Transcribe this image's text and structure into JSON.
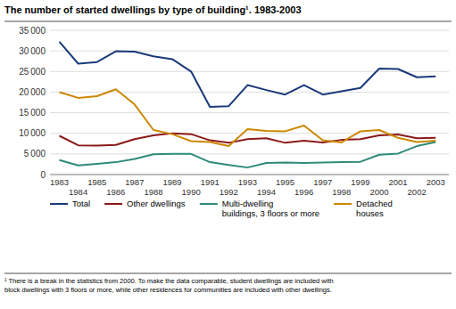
{
  "chart_data": {
    "type": "line",
    "title": "The number of started dwellings by type of building¹. 1983-2003",
    "x": [
      1983,
      1984,
      1985,
      1986,
      1987,
      1988,
      1989,
      1990,
      1991,
      1992,
      1993,
      1994,
      1995,
      1996,
      1997,
      1998,
      1999,
      2000,
      2001,
      2002,
      2003
    ],
    "xlim": [
      1982.5,
      2003.7
    ],
    "xticks": [
      1983,
      1984,
      1985,
      1986,
      1987,
      1988,
      1989,
      1990,
      1991,
      1992,
      1993,
      1994,
      1995,
      1996,
      1997,
      1998,
      1999,
      2000,
      2001,
      2002,
      2003
    ],
    "ylim": [
      0,
      35000
    ],
    "yticks": [
      0,
      {
        "value": 5000,
        "label": "5 000"
      },
      {
        "value": 10000,
        "label": "10 000"
      },
      {
        "value": 15000,
        "label": "15 000"
      },
      {
        "value": 20000,
        "label": "20 000"
      },
      {
        "value": 25000,
        "label": "25 000"
      },
      {
        "value": 30000,
        "label": "30 000"
      },
      {
        "value": 35000,
        "label": "35 000"
      }
    ],
    "grid": true,
    "legend": "bottom",
    "series": [
      {
        "name": "Total",
        "color": "#1a3a7a",
        "values": [
          32200,
          26900,
          27300,
          29900,
          29800,
          28700,
          28000,
          25000,
          16400,
          16600,
          21700,
          20500,
          19400,
          21700,
          19400,
          20200,
          21000,
          25700,
          25600,
          23600,
          23800
        ]
      },
      {
        "name": "Other dwellings",
        "color": "#8b1a1a",
        "values": [
          9400,
          7100,
          7000,
          7200,
          8600,
          9500,
          10000,
          9800,
          8300,
          7700,
          8600,
          8800,
          7700,
          8200,
          7800,
          8400,
          8600,
          9500,
          9700,
          8800,
          8900
        ]
      },
      {
        "name": "Multi-dwelling\nbuildings, 3 floors or more",
        "color": "#2e8b7a",
        "values": [
          3500,
          2200,
          2600,
          3000,
          3800,
          4900,
          5000,
          5000,
          3000,
          2300,
          1700,
          2800,
          2900,
          2800,
          2900,
          3000,
          3100,
          4800,
          5100,
          6900,
          7900
        ]
      },
      {
        "name": "Detached\nhouses",
        "color": "#cc8800",
        "values": [
          20000,
          18600,
          19000,
          20700,
          17000,
          10800,
          9800,
          8100,
          7900,
          6900,
          11000,
          10600,
          10500,
          11900,
          8300,
          7800,
          10500,
          10800,
          8900,
          7900,
          8200
        ]
      }
    ],
    "annotations": [
      "¹ There is a break in the statistics from 2000. To make the data comparable, student dwellings are included with",
      "block dwellings with 3 floors or more, while other residences for communities are included with other dwellings."
    ]
  }
}
